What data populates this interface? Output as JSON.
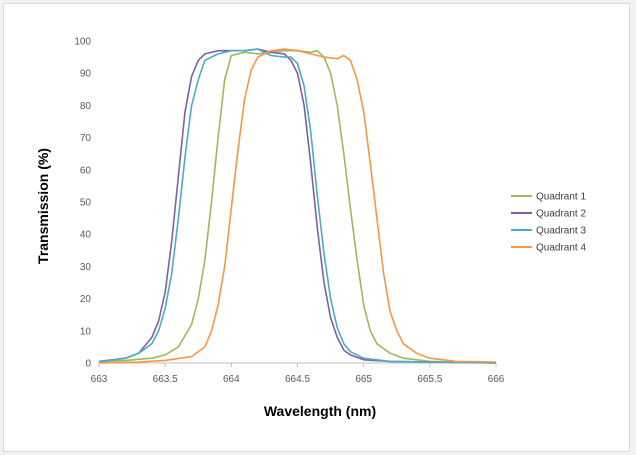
{
  "chart_data": {
    "type": "line",
    "title": "",
    "xlabel": "Wavelength (nm)",
    "ylabel": "Transmission (%)",
    "xlim": [
      663,
      666
    ],
    "ylim": [
      0,
      100
    ],
    "xticks": [
      663,
      663.5,
      664,
      664.5,
      665,
      665.5,
      666
    ],
    "yticks": [
      0,
      10,
      20,
      30,
      40,
      50,
      60,
      70,
      80,
      90,
      100
    ],
    "grid": false,
    "legend_position": "right",
    "series": [
      {
        "name": "Quadrant 1",
        "color": "#9bbb59",
        "points": [
          [
            663,
            0.5
          ],
          [
            663.2,
            0.8
          ],
          [
            663.4,
            1.5
          ],
          [
            663.5,
            2.5
          ],
          [
            663.6,
            5
          ],
          [
            663.7,
            12
          ],
          [
            663.75,
            20
          ],
          [
            663.8,
            32
          ],
          [
            663.85,
            50
          ],
          [
            663.9,
            70
          ],
          [
            663.95,
            88
          ],
          [
            664,
            95.5
          ],
          [
            664.1,
            96.5
          ],
          [
            664.2,
            96
          ],
          [
            664.3,
            96.5
          ],
          [
            664.4,
            97
          ],
          [
            664.5,
            97
          ],
          [
            664.6,
            96.5
          ],
          [
            664.65,
            97
          ],
          [
            664.7,
            95
          ],
          [
            664.75,
            90
          ],
          [
            664.8,
            80
          ],
          [
            664.85,
            65
          ],
          [
            664.9,
            48
          ],
          [
            664.95,
            32
          ],
          [
            665,
            18
          ],
          [
            665.05,
            10
          ],
          [
            665.1,
            6
          ],
          [
            665.2,
            3
          ],
          [
            665.3,
            1.5
          ],
          [
            665.5,
            0.5
          ],
          [
            666,
            0
          ]
        ]
      },
      {
        "name": "Quadrant 2",
        "color": "#7f5fa8",
        "points": [
          [
            663,
            0.5
          ],
          [
            663.2,
            1.5
          ],
          [
            663.3,
            3
          ],
          [
            663.4,
            8
          ],
          [
            663.45,
            13
          ],
          [
            663.5,
            22
          ],
          [
            663.55,
            38
          ],
          [
            663.6,
            58
          ],
          [
            663.65,
            78
          ],
          [
            663.7,
            89
          ],
          [
            663.75,
            94
          ],
          [
            663.8,
            96
          ],
          [
            663.9,
            97
          ],
          [
            664,
            97
          ],
          [
            664.1,
            97
          ],
          [
            664.2,
            97.5
          ],
          [
            664.3,
            96.5
          ],
          [
            664.4,
            96
          ],
          [
            664.45,
            94
          ],
          [
            664.5,
            90
          ],
          [
            664.55,
            80
          ],
          [
            664.6,
            62
          ],
          [
            664.65,
            42
          ],
          [
            664.7,
            25
          ],
          [
            664.75,
            14
          ],
          [
            664.8,
            8
          ],
          [
            664.85,
            4
          ],
          [
            664.9,
            2.5
          ],
          [
            665,
            1
          ],
          [
            665.2,
            0.5
          ],
          [
            666,
            0
          ]
        ]
      },
      {
        "name": "Quadrant 3",
        "color": "#4bacc6",
        "points": [
          [
            663,
            0.3
          ],
          [
            663.2,
            1.5
          ],
          [
            663.3,
            3
          ],
          [
            663.4,
            6
          ],
          [
            663.45,
            10
          ],
          [
            663.5,
            17
          ],
          [
            663.55,
            28
          ],
          [
            663.6,
            45
          ],
          [
            663.65,
            64
          ],
          [
            663.7,
            80
          ],
          [
            663.75,
            88
          ],
          [
            663.8,
            94
          ],
          [
            663.9,
            96
          ],
          [
            664,
            97
          ],
          [
            664.1,
            97
          ],
          [
            664.2,
            97.5
          ],
          [
            664.3,
            95.5
          ],
          [
            664.4,
            95
          ],
          [
            664.45,
            95
          ],
          [
            664.5,
            93
          ],
          [
            664.55,
            86
          ],
          [
            664.6,
            72
          ],
          [
            664.65,
            52
          ],
          [
            664.7,
            34
          ],
          [
            664.75,
            20
          ],
          [
            664.8,
            11
          ],
          [
            664.85,
            6
          ],
          [
            664.9,
            3.5
          ],
          [
            665,
            1.5
          ],
          [
            665.2,
            0.5
          ],
          [
            666,
            0
          ]
        ]
      },
      {
        "name": "Quadrant 4",
        "color": "#f79646",
        "points": [
          [
            663,
            0
          ],
          [
            663.3,
            0.3
          ],
          [
            663.5,
            0.8
          ],
          [
            663.7,
            2
          ],
          [
            663.8,
            5
          ],
          [
            663.85,
            10
          ],
          [
            663.9,
            18
          ],
          [
            663.95,
            30
          ],
          [
            664,
            48
          ],
          [
            664.05,
            66
          ],
          [
            664.1,
            82
          ],
          [
            664.15,
            91
          ],
          [
            664.2,
            95
          ],
          [
            664.3,
            97
          ],
          [
            664.4,
            97.5
          ],
          [
            664.5,
            97
          ],
          [
            664.6,
            96
          ],
          [
            664.7,
            95
          ],
          [
            664.8,
            94.5
          ],
          [
            664.85,
            95.5
          ],
          [
            664.9,
            94
          ],
          [
            664.95,
            88
          ],
          [
            665,
            78
          ],
          [
            665.05,
            62
          ],
          [
            665.1,
            45
          ],
          [
            665.15,
            28
          ],
          [
            665.2,
            16
          ],
          [
            665.25,
            10
          ],
          [
            665.3,
            6
          ],
          [
            665.4,
            3
          ],
          [
            665.5,
            1.5
          ],
          [
            665.7,
            0.5
          ],
          [
            666,
            0.3
          ]
        ]
      }
    ]
  }
}
